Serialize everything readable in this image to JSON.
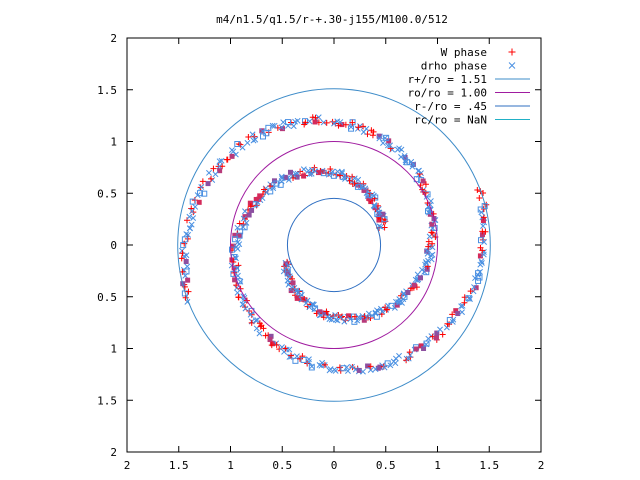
{
  "chart_data": {
    "type": "scatter",
    "title": "m4/n1.5/q1.5/r-+.30-j155/M100.0/512",
    "xlabel": "",
    "ylabel": "",
    "xlim": [
      -2,
      2
    ],
    "ylim": [
      -2,
      2
    ],
    "grid": false,
    "legend_position": "top-right",
    "x_ticks": [
      {
        "value": -2,
        "label": "2"
      },
      {
        "value": -1.5,
        "label": "1.5"
      },
      {
        "value": -1,
        "label": "1"
      },
      {
        "value": -0.5,
        "label": "0.5"
      },
      {
        "value": 0,
        "label": "0"
      },
      {
        "value": 0.5,
        "label": "0.5"
      },
      {
        "value": 1,
        "label": "1"
      },
      {
        "value": 1.5,
        "label": "1.5"
      },
      {
        "value": 2,
        "label": "2"
      }
    ],
    "y_ticks": [
      {
        "value": 2,
        "label": "2"
      },
      {
        "value": 1.5,
        "label": "1.5"
      },
      {
        "value": 1,
        "label": "1"
      },
      {
        "value": 0.5,
        "label": "0.5"
      },
      {
        "value": 0,
        "label": "0"
      },
      {
        "value": -0.5,
        "label": "0.5"
      },
      {
        "value": -1,
        "label": "1"
      },
      {
        "value": -1.5,
        "label": "1.5"
      },
      {
        "value": -2,
        "label": "2"
      }
    ],
    "legend": [
      {
        "label": "W phase",
        "kind": "plus",
        "color": "#ff0000"
      },
      {
        "label": "drho phase",
        "kind": "cross",
        "color": "#4a90e2"
      },
      {
        "label": "r+/ro = 1.51",
        "kind": "line",
        "color": "#3e8cc9"
      },
      {
        "label": "ro/ro = 1.00",
        "kind": "line",
        "color": "#a01ca0"
      },
      {
        "label": "r-/ro = .45",
        "kind": "line",
        "color": "#2f6fc2"
      },
      {
        "label": "rc/ro = NaN",
        "kind": "line",
        "color": "#21b0c6"
      }
    ],
    "circles": [
      {
        "name": "r+/ro",
        "radius": 1.51,
        "color": "#3e8cc9"
      },
      {
        "name": "ro/ro",
        "radius": 1.0,
        "color": "#a01ca0"
      },
      {
        "name": "r-/ro",
        "radius": 0.45,
        "color": "#2f6fc2"
      }
    ],
    "spiral_arms": [
      {
        "r_start": 0.5,
        "r_end": 1.5,
        "theta_start_deg": 200,
        "sweep_deg": 360
      },
      {
        "r_start": 0.5,
        "r_end": 1.5,
        "theta_start_deg": 20,
        "sweep_deg": 360
      }
    ],
    "series": [
      {
        "name": "W phase",
        "marker": "plus",
        "color": "#ff0000"
      },
      {
        "name": "drho phase",
        "marker": "cross",
        "color": "#4a90e2"
      }
    ],
    "extra_marker_colors": [
      "#d42a5a",
      "#8c4fa0",
      "#b83a7a"
    ]
  }
}
